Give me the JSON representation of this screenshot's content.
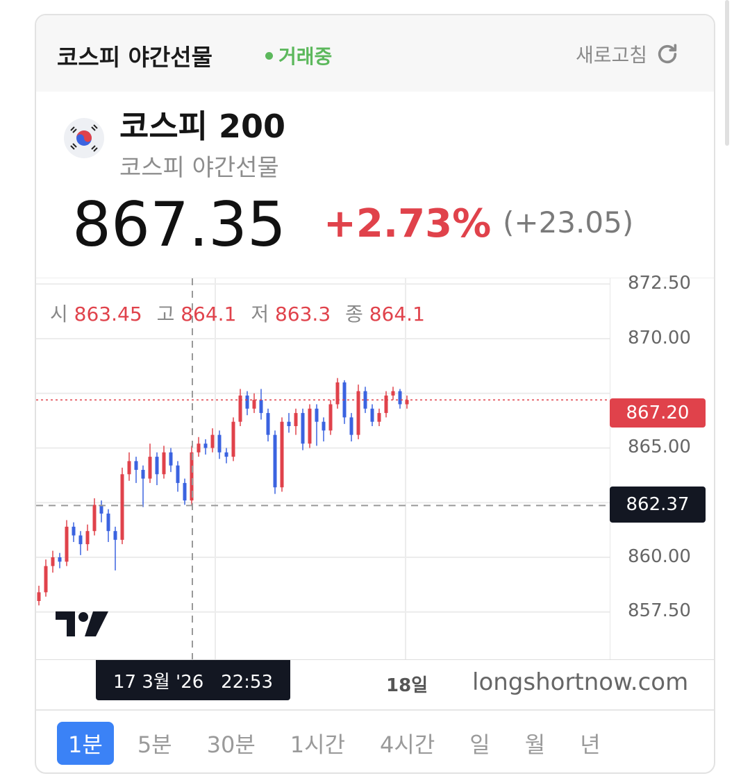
{
  "header": {
    "title": "코스피 야간선물",
    "status": "거래중",
    "refresh_label": "새로고침",
    "status_color": "#5cb85c"
  },
  "instrument": {
    "name": "코스피 200",
    "subtitle": "코스피 야간선물",
    "flag_icon": "korea-flag-icon",
    "price": "867.35",
    "change_pct": "+2.73%",
    "change_abs": "(+23.05)",
    "up_color": "#e0424b",
    "down_color": "#3b63e0"
  },
  "ohlc": {
    "o_label": "시",
    "o": "863.45",
    "h_label": "고",
    "h": "864.1",
    "l_label": "저",
    "l": "863.3",
    "c_label": "종",
    "c": "864.1"
  },
  "chart": {
    "y_ticks": [
      "872.50",
      "870.00",
      "865.00",
      "860.00",
      "857.50"
    ],
    "last_price": "867.20",
    "crosshair_price": "862.37",
    "crosshair_time": "17 3월 '26   22:53",
    "x_label": "18일",
    "watermark": "longshortnow.com"
  },
  "chart_data": {
    "type": "candlestick",
    "ylim": [
      856,
      873
    ],
    "candles": [
      [
        858.0,
        858.7,
        857.8,
        858.4
      ],
      [
        858.4,
        859.9,
        858.2,
        859.6
      ],
      [
        859.6,
        860.3,
        859.3,
        860.0
      ],
      [
        860.0,
        860.2,
        859.5,
        859.8
      ],
      [
        859.8,
        861.7,
        859.6,
        861.4
      ],
      [
        861.4,
        861.6,
        860.7,
        861.0
      ],
      [
        861.0,
        861.2,
        860.1,
        860.6
      ],
      [
        860.6,
        861.5,
        860.3,
        861.2
      ],
      [
        861.2,
        862.7,
        861.0,
        862.4
      ],
      [
        862.4,
        862.6,
        861.6,
        862.0
      ],
      [
        862.0,
        862.2,
        860.7,
        861.2
      ],
      [
        861.2,
        861.4,
        859.4,
        860.8
      ],
      [
        860.8,
        864.1,
        860.6,
        863.8
      ],
      [
        863.8,
        864.8,
        863.5,
        864.4
      ],
      [
        864.4,
        864.6,
        863.4,
        864.0
      ],
      [
        864.0,
        864.2,
        862.3,
        863.6
      ],
      [
        863.6,
        865.2,
        863.4,
        864.6
      ],
      [
        864.6,
        864.8,
        863.3,
        863.8
      ],
      [
        863.8,
        865.1,
        863.6,
        864.8
      ],
      [
        864.8,
        865.0,
        863.9,
        864.2
      ],
      [
        864.2,
        864.4,
        863.0,
        863.4
      ],
      [
        863.4,
        863.6,
        862.4,
        862.6
      ],
      [
        862.6,
        865.1,
        862.4,
        864.8
      ],
      [
        864.8,
        865.5,
        864.6,
        865.2
      ],
      [
        865.2,
        865.4,
        864.7,
        865.0
      ],
      [
        865.0,
        865.9,
        864.8,
        865.6
      ],
      [
        865.6,
        865.8,
        864.5,
        864.8
      ],
      [
        864.8,
        865.0,
        864.3,
        864.6
      ],
      [
        864.6,
        866.4,
        864.4,
        866.2
      ],
      [
        866.2,
        867.7,
        866.0,
        867.4
      ],
      [
        867.4,
        867.6,
        866.5,
        866.8
      ],
      [
        866.8,
        867.5,
        866.6,
        867.2
      ],
      [
        867.2,
        867.7,
        866.3,
        866.6
      ],
      [
        866.6,
        866.8,
        865.3,
        865.6
      ],
      [
        865.6,
        865.8,
        862.9,
        863.2
      ],
      [
        863.2,
        866.4,
        863.0,
        866.2
      ],
      [
        866.2,
        866.6,
        865.7,
        866.0
      ],
      [
        866.0,
        866.8,
        865.6,
        866.6
      ],
      [
        866.6,
        866.8,
        864.9,
        865.2
      ],
      [
        865.2,
        867.0,
        865.0,
        866.8
      ],
      [
        866.8,
        867.0,
        865.1,
        866.2
      ],
      [
        866.2,
        866.4,
        865.3,
        865.8
      ],
      [
        865.8,
        867.2,
        865.6,
        867.0
      ],
      [
        867.0,
        868.2,
        866.8,
        868.0
      ],
      [
        868.0,
        868.1,
        866.1,
        866.4
      ],
      [
        866.4,
        866.6,
        865.3,
        865.6
      ],
      [
        865.6,
        867.9,
        865.4,
        867.6
      ],
      [
        867.6,
        867.8,
        866.6,
        866.8
      ],
      [
        866.8,
        867.0,
        866.0,
        866.2
      ],
      [
        866.2,
        866.8,
        866.0,
        866.6
      ],
      [
        866.6,
        867.6,
        866.4,
        867.4
      ],
      [
        867.4,
        867.8,
        867.2,
        867.6
      ],
      [
        867.6,
        867.7,
        866.8,
        867.0
      ],
      [
        867.0,
        867.4,
        866.8,
        867.2
      ]
    ]
  },
  "tabs": [
    {
      "label": "1분",
      "active": true
    },
    {
      "label": "5분"
    },
    {
      "label": "30분"
    },
    {
      "label": "1시간"
    },
    {
      "label": "4시간"
    },
    {
      "label": "일"
    },
    {
      "label": "월"
    },
    {
      "label": "년"
    }
  ]
}
